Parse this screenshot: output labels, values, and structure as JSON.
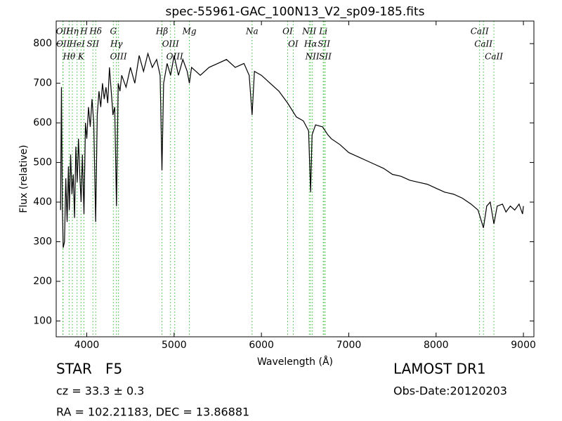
{
  "chart_data": {
    "type": "line",
    "title": "spec-55961-GAC_100N13_V2_sp09-185.fits",
    "x_label": "Wavelength (Å)",
    "y_label": "Flux (relative)",
    "xlim": [
      3650,
      9120
    ],
    "ylim": [
      60,
      857
    ],
    "xticks": [
      4000,
      5000,
      6000,
      7000,
      8000,
      9000
    ],
    "yticks": [
      100,
      200,
      300,
      400,
      500,
      600,
      700,
      800
    ],
    "color": "#000000",
    "line_color": "#33bb33",
    "x": [
      3700,
      3710,
      3720,
      3730,
      3745,
      3760,
      3775,
      3790,
      3800,
      3815,
      3830,
      3845,
      3860,
      3875,
      3890,
      3905,
      3920,
      3935,
      3950,
      3968,
      3985,
      4000,
      4020,
      4040,
      4060,
      4080,
      4102,
      4120,
      4140,
      4160,
      4180,
      4200,
      4220,
      4240,
      4260,
      4280,
      4300,
      4320,
      4340,
      4360,
      4380,
      4400,
      4450,
      4500,
      4550,
      4600,
      4650,
      4700,
      4750,
      4800,
      4840,
      4861,
      4880,
      4920,
      4960,
      5000,
      5050,
      5100,
      5150,
      5175,
      5200,
      5300,
      5400,
      5500,
      5600,
      5700,
      5800,
      5860,
      5893,
      5920,
      6000,
      6100,
      6200,
      6300,
      6400,
      6480,
      6540,
      6563,
      6580,
      6620,
      6700,
      6760,
      6800,
      6900,
      7000,
      7100,
      7200,
      7300,
      7400,
      7500,
      7600,
      7700,
      7800,
      7900,
      8000,
      8100,
      8200,
      8300,
      8400,
      8480,
      8542,
      8580,
      8620,
      8662,
      8700,
      8760,
      8800,
      8850,
      8900,
      8950,
      8990,
      9000
    ],
    "values": [
      380,
      690,
      400,
      285,
      300,
      460,
      350,
      490,
      380,
      520,
      420,
      470,
      360,
      540,
      450,
      560,
      470,
      400,
      520,
      370,
      600,
      560,
      640,
      590,
      660,
      600,
      350,
      620,
      680,
      640,
      700,
      660,
      690,
      650,
      740,
      680,
      620,
      640,
      390,
      700,
      680,
      720,
      690,
      740,
      700,
      770,
      730,
      775,
      740,
      760,
      720,
      480,
      700,
      750,
      720,
      770,
      720,
      760,
      730,
      700,
      740,
      720,
      740,
      750,
      760,
      740,
      750,
      720,
      620,
      730,
      720,
      700,
      680,
      650,
      615,
      605,
      580,
      425,
      570,
      595,
      590,
      570,
      560,
      545,
      525,
      515,
      505,
      495,
      485,
      470,
      465,
      455,
      450,
      445,
      435,
      425,
      420,
      410,
      395,
      380,
      335,
      390,
      400,
      345,
      390,
      395,
      375,
      390,
      380,
      395,
      370,
      390
    ],
    "lines": [
      {
        "label": "OII",
        "wavelength": 3726
      },
      {
        "label": "OII",
        "wavelength": 3729
      },
      {
        "label": "Hθ",
        "wavelength": 3798
      },
      {
        "label": "Hη",
        "wavelength": 3835
      },
      {
        "label": "HeI",
        "wavelength": 3889
      },
      {
        "label": "K",
        "wavelength": 3934
      },
      {
        "label": "H",
        "wavelength": 3968
      },
      {
        "label": "SII",
        "wavelength": 4070
      },
      {
        "label": "Hδ",
        "wavelength": 4102
      },
      {
        "label": "G",
        "wavelength": 4304
      },
      {
        "label": "Hγ",
        "wavelength": 4340
      },
      {
        "label": "OIII",
        "wavelength": 4363
      },
      {
        "label": "Hβ",
        "wavelength": 4861
      },
      {
        "label": "OIII",
        "wavelength": 4959
      },
      {
        "label": "OIII",
        "wavelength": 5007
      },
      {
        "label": "Mg",
        "wavelength": 5175
      },
      {
        "label": "Na",
        "wavelength": 5893
      },
      {
        "label": "OI",
        "wavelength": 6300
      },
      {
        "label": "OI",
        "wavelength": 6364
      },
      {
        "label": "NII",
        "wavelength": 6548
      },
      {
        "label": "Hα",
        "wavelength": 6563
      },
      {
        "label": "NII",
        "wavelength": 6583
      },
      {
        "label": "Li",
        "wavelength": 6708
      },
      {
        "label": "SII",
        "wavelength": 6716
      },
      {
        "label": "SII",
        "wavelength": 6731
      },
      {
        "label": "CaII",
        "wavelength": 8498
      },
      {
        "label": "CaII",
        "wavelength": 8542
      },
      {
        "label": "CaII",
        "wavelength": 8662
      }
    ],
    "annotations": [
      "STAR   F5",
      "LAMOST DR1",
      "cz = 33.3 ± 0.3",
      "Obs-Date:20120203",
      "RA = 102.21183, DEC = 13.86881"
    ]
  }
}
